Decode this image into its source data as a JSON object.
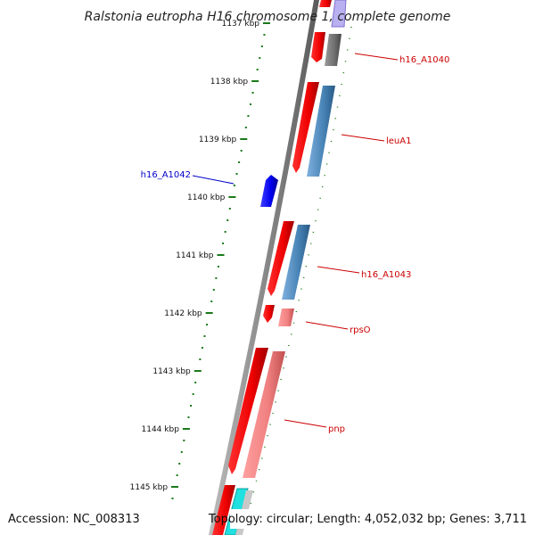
{
  "title": "Ralstonia eutropha H16 chromosome 1, complete genome",
  "footer": {
    "accession": "Accession: NC_008313",
    "topology": "Topology: circular; Length: 4,052,032 bp; Genes: 3,711"
  },
  "ticks": [
    {
      "label": "1137 kbp",
      "value_kbp": 1137
    },
    {
      "label": "1138 kbp",
      "value_kbp": 1138
    },
    {
      "label": "1139 kbp",
      "value_kbp": 1139
    },
    {
      "label": "1140 kbp",
      "value_kbp": 1140
    },
    {
      "label": "1141 kbp",
      "value_kbp": 1141
    },
    {
      "label": "1142 kbp",
      "value_kbp": 1142
    },
    {
      "label": "1143 kbp",
      "value_kbp": 1143
    },
    {
      "label": "1144 kbp",
      "value_kbp": 1144
    },
    {
      "label": "1145 kbp",
      "value_kbp": 1145
    }
  ],
  "genes": [
    {
      "label": "h16_A1040",
      "color": "#cc0000"
    },
    {
      "label": "leuA1",
      "color": "#cc0000"
    },
    {
      "label": "h16_A1042",
      "color": "#0000cc"
    },
    {
      "label": "h16_A1043",
      "color": "#cc0000"
    },
    {
      "label": "rpsO",
      "color": "#cc0000"
    },
    {
      "label": "pnp",
      "color": "#cc0000"
    }
  ],
  "colors": {
    "backbone": "#8a8a8a",
    "tick": "#1a7a1a",
    "cds": "#ee0000",
    "rrna_like": "#f08080",
    "trna_like": "#4682b4",
    "other": "#6e6e6e",
    "reverse_cds": "#0000ee"
  }
}
